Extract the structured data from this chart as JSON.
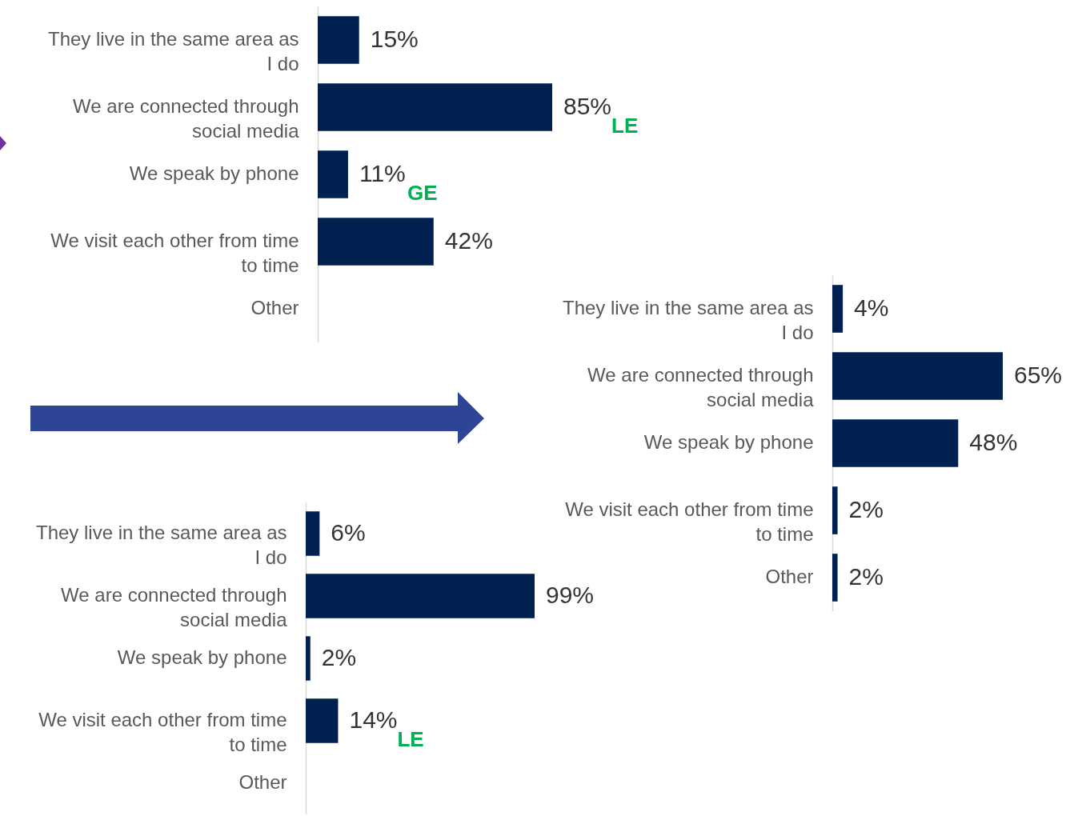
{
  "chart_data": [
    {
      "type": "bar",
      "orientation": "horizontal",
      "categories": [
        "They live in the same area as I do",
        "We are connected through social media",
        "We speak by phone",
        "We visit each other from time to time",
        "Other"
      ],
      "values": [
        15,
        85,
        11,
        42,
        null
      ],
      "value_labels": [
        "15%",
        "85%",
        "11%",
        "42%",
        null
      ],
      "color": "#002050",
      "annotations": [
        {
          "text": "LE",
          "x": 85,
          "y": "We are connected through social media"
        },
        {
          "text": "GE",
          "x": 11,
          "y": "We speak by phone"
        }
      ]
    },
    {
      "type": "bar",
      "orientation": "horizontal",
      "categories": [
        "They live in the same area as I do",
        "We are connected through social media",
        "We speak by phone",
        "We visit each other from time to time",
        "Other"
      ],
      "values": [
        4,
        65,
        48,
        2,
        2
      ],
      "value_labels": [
        "4%",
        "65%",
        "48%",
        "2%",
        "2%"
      ],
      "color": "#002050"
    },
    {
      "type": "bar",
      "orientation": "horizontal",
      "categories": [
        "They live in the same area as I do",
        "We are connected through social media",
        "We speak by phone",
        "We visit each other from time to time",
        "Other"
      ],
      "values": [
        6,
        99,
        2,
        14,
        null
      ],
      "value_labels": [
        "6%",
        "99%",
        "2%",
        "14%",
        null
      ],
      "color": "#002050",
      "annotations": [
        {
          "text": "LE",
          "x": 14,
          "y": "We visit each other from time to time"
        }
      ]
    }
  ]
}
